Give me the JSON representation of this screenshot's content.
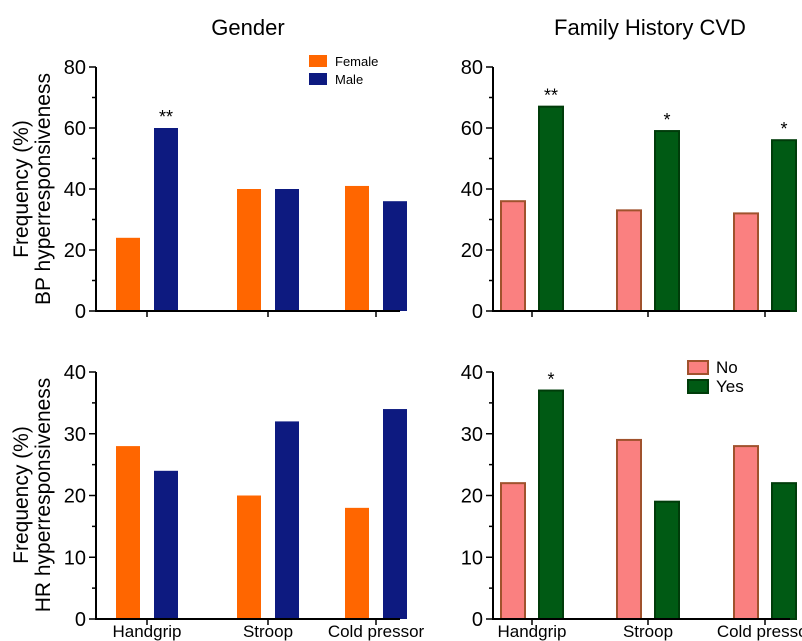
{
  "titles": {
    "gender": "Gender",
    "family_history": "Family History CVD"
  },
  "y_labels": {
    "bp_line1": "Frequency (%)",
    "bp_line2": "BP hyperresponsiveness",
    "hr_line1": "Frequency (%)",
    "hr_line2": "HR hyperresponsiveness"
  },
  "colors": {
    "female": "#ff6600",
    "male": "#0d1a80",
    "no_fill": "#fa8080",
    "no_stroke": "#a0522d",
    "yes_fill": "#005a14",
    "yes_stroke": "#003c0a"
  },
  "chart_data": [
    {
      "id": "bp-gender",
      "type": "bar",
      "categories": [
        "Handgrip",
        "Stroop",
        "Cold pressor"
      ],
      "series": [
        {
          "name": "Female",
          "values": [
            24,
            40,
            41
          ],
          "color": "#ff6600"
        },
        {
          "name": "Male",
          "values": [
            60,
            40,
            36
          ],
          "color": "#0d1a80"
        }
      ],
      "annotations": [
        {
          "series": 1,
          "category": 0,
          "text": "**"
        }
      ],
      "ylim": [
        0,
        80
      ],
      "yticks": [
        0,
        20,
        40,
        60,
        80
      ],
      "legend": "top-right",
      "show_xlabels": false
    },
    {
      "id": "bp-family",
      "type": "bar",
      "categories": [
        "Handgrip",
        "Stroop",
        "Cold pressor"
      ],
      "series": [
        {
          "name": "No",
          "values": [
            36,
            33,
            32
          ],
          "color": "#fa8080"
        },
        {
          "name": "Yes",
          "values": [
            67,
            59,
            56
          ],
          "color": "#005a14"
        }
      ],
      "annotations": [
        {
          "series": 1,
          "category": 0,
          "text": "**"
        },
        {
          "series": 1,
          "category": 1,
          "text": "*"
        },
        {
          "series": 1,
          "category": 2,
          "text": "*"
        }
      ],
      "ylim": [
        0,
        80
      ],
      "yticks": [
        0,
        20,
        40,
        60,
        80
      ],
      "legend": "none",
      "show_xlabels": false
    },
    {
      "id": "hr-gender",
      "type": "bar",
      "categories": [
        "Handgrip",
        "Stroop",
        "Cold pressor"
      ],
      "series": [
        {
          "name": "Female",
          "values": [
            28,
            20,
            18
          ],
          "color": "#ff6600"
        },
        {
          "name": "Male",
          "values": [
            24,
            32,
            34
          ],
          "color": "#0d1a80"
        }
      ],
      "annotations": [],
      "ylim": [
        0,
        40
      ],
      "yticks": [
        0,
        10,
        20,
        30,
        40
      ],
      "legend": "none",
      "show_xlabels": true
    },
    {
      "id": "hr-family",
      "type": "bar",
      "categories": [
        "Handgrip",
        "Stroop",
        "Cold pressor"
      ],
      "series": [
        {
          "name": "No",
          "values": [
            22,
            29,
            28
          ],
          "color": "#fa8080"
        },
        {
          "name": "Yes",
          "values": [
            37,
            19,
            22
          ],
          "color": "#005a14"
        }
      ],
      "annotations": [
        {
          "series": 1,
          "category": 0,
          "text": "*"
        }
      ],
      "ylim": [
        0,
        40
      ],
      "yticks": [
        0,
        10,
        20,
        30,
        40
      ],
      "legend": "top-right",
      "show_xlabels": true
    }
  ]
}
